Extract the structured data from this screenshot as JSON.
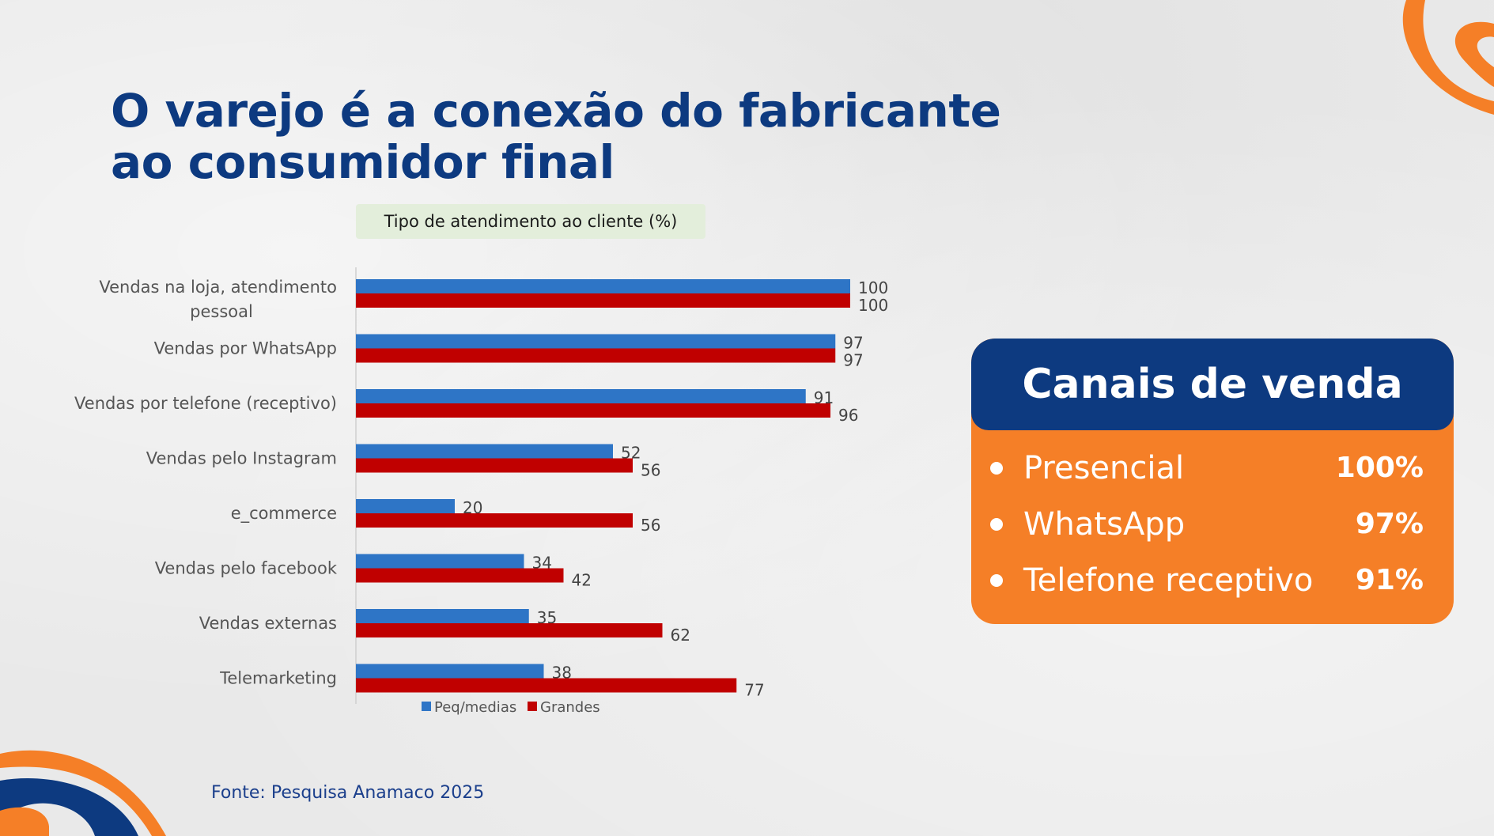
{
  "slide": {
    "title_line1": "O varejo é a conexão do fabricante",
    "title_line2": "ao consumidor final",
    "source": "Fonte: Pesquisa Anamaco 2025"
  },
  "colors": {
    "navy": "#0d3a80",
    "orange": "#f57f27",
    "series_peq": "#2e75c6",
    "series_grandes": "#c00000"
  },
  "chart_data": {
    "type": "bar",
    "orientation": "horizontal",
    "title": "Tipo de atendimento ao cliente (%)",
    "categories": [
      [
        "Vendas na loja, atendimento",
        "pessoal"
      ],
      [
        "Vendas por WhatsApp"
      ],
      [
        "Vendas por telefone (receptivo)"
      ],
      [
        "Vendas pelo Instagram"
      ],
      [
        "e_commerce"
      ],
      [
        "Vendas pelo facebook"
      ],
      [
        "Vendas externas"
      ],
      [
        "Telemarketing"
      ]
    ],
    "series": [
      {
        "name": "Peq/medias",
        "color": "#2e75c6",
        "values": [
          100,
          97,
          91,
          52,
          20,
          34,
          35,
          38
        ]
      },
      {
        "name": "Grandes",
        "color": "#c00000",
        "values": [
          100,
          97,
          96,
          56,
          56,
          42,
          62,
          77
        ]
      }
    ],
    "xlim": [
      0,
      100
    ],
    "grid": false,
    "legend_position": "bottom"
  },
  "card": {
    "title": "Canais de venda",
    "items": [
      {
        "channel": "Presencial",
        "pct": "100%"
      },
      {
        "channel": "WhatsApp",
        "pct": "97%"
      },
      {
        "channel": "Telefone receptivo",
        "pct": "91%"
      }
    ]
  }
}
